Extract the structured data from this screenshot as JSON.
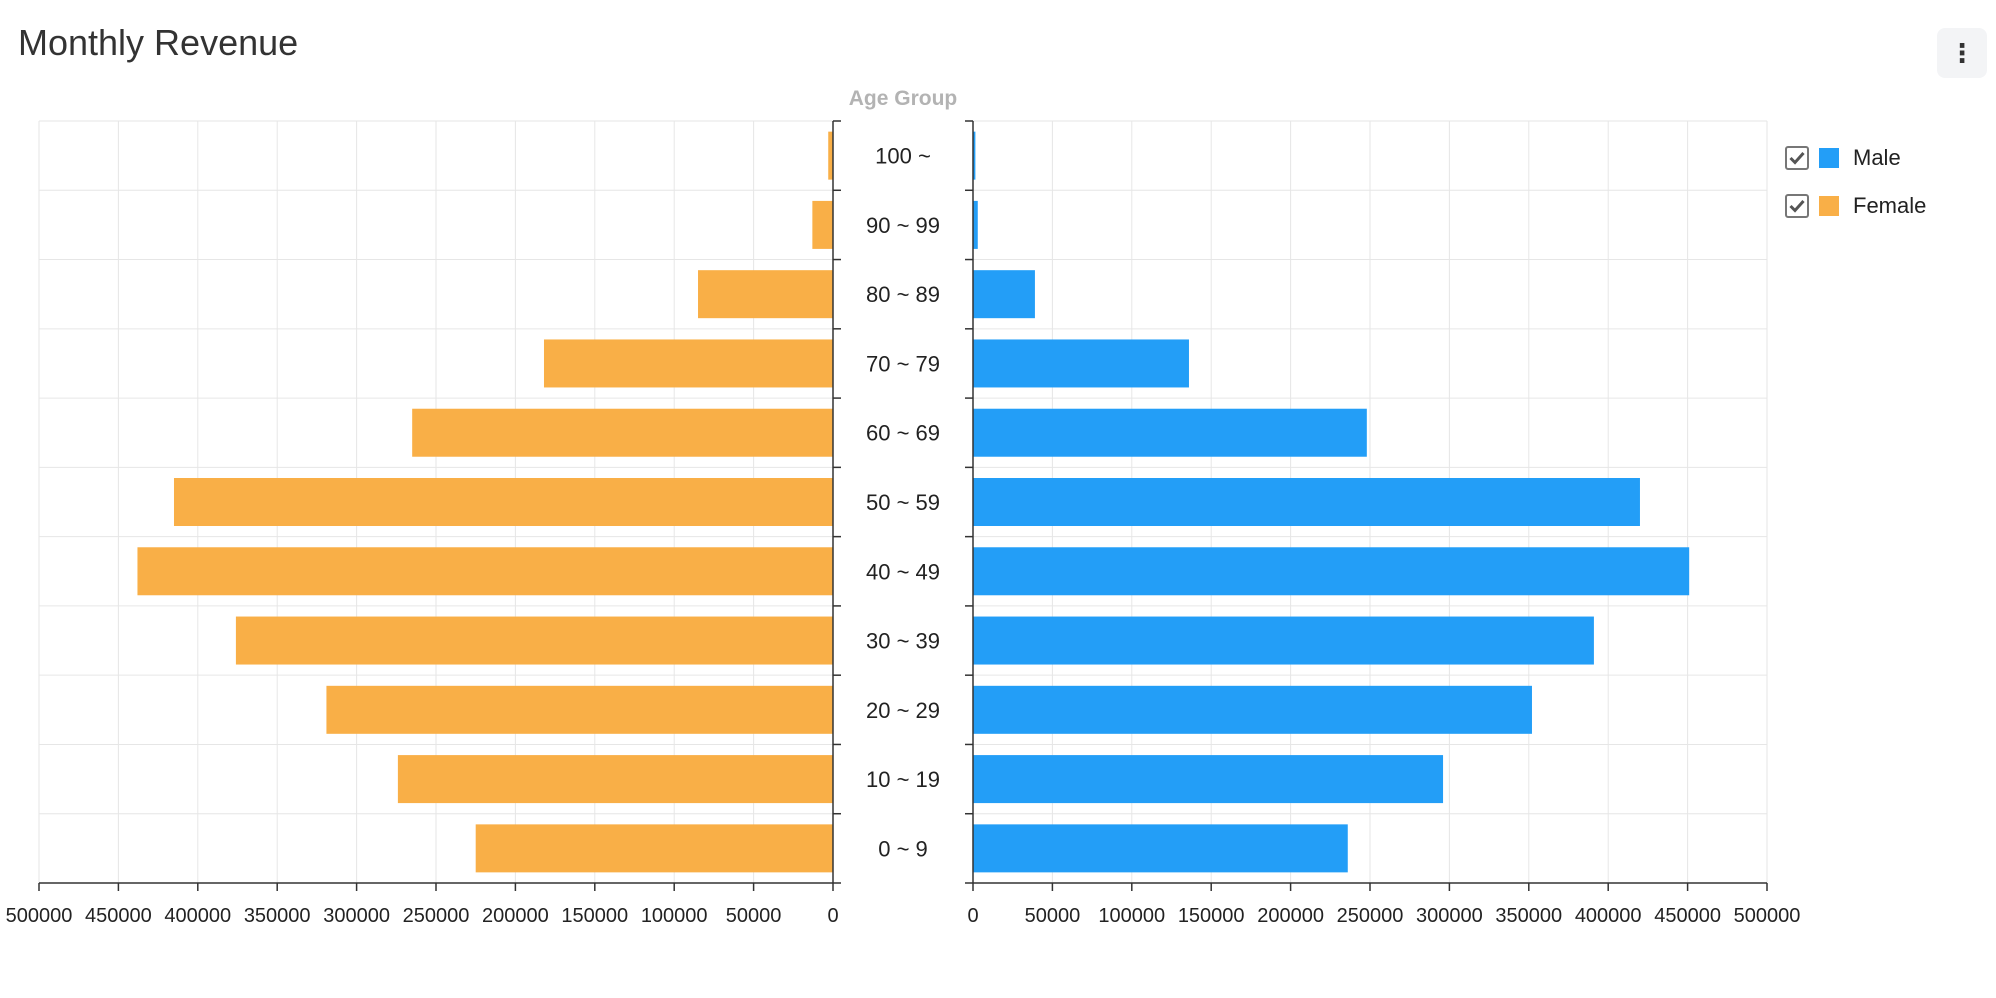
{
  "header": {
    "title": "Monthly Revenue",
    "menu_icon": "kebab-menu-icon"
  },
  "chart_data": {
    "type": "bar",
    "subtype": "population-pyramid",
    "title": "Monthly Revenue",
    "center_label": "Age Group",
    "categories": [
      "100 ~",
      "90 ~ 99",
      "80 ~ 89",
      "70 ~ 79",
      "60 ~ 69",
      "50 ~ 59",
      "40 ~ 49",
      "30 ~ 39",
      "20 ~ 29",
      "10 ~ 19",
      "0 ~ 9"
    ],
    "series": [
      {
        "name": "Female",
        "side": "left",
        "color": "#F9AF47",
        "values": [
          3000,
          13000,
          85000,
          182000,
          265000,
          415000,
          438000,
          376000,
          319000,
          274000,
          225000
        ]
      },
      {
        "name": "Male",
        "side": "right",
        "color": "#239EF7",
        "values": [
          1500,
          3000,
          39000,
          136000,
          248000,
          420000,
          451000,
          391000,
          352000,
          296000,
          236000
        ]
      }
    ],
    "xlim": [
      0,
      500000
    ],
    "xticks": [
      0,
      50000,
      100000,
      150000,
      200000,
      250000,
      300000,
      350000,
      400000,
      450000,
      500000
    ],
    "grid": true,
    "legend_position": "top-right"
  },
  "legend": {
    "items": [
      {
        "label": "Male",
        "color": "#239EF7",
        "checked": true
      },
      {
        "label": "Female",
        "color": "#F9AF47",
        "checked": true
      }
    ]
  }
}
